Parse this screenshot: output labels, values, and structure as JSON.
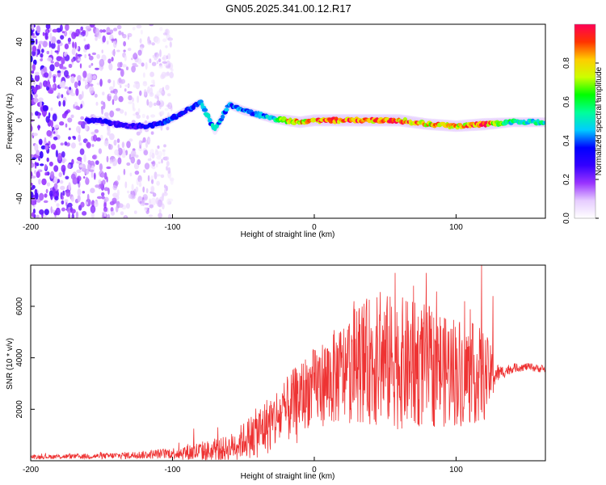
{
  "title": "GN05.2025.341.00.12.R17",
  "chart_data": [
    {
      "type": "heatmap",
      "id": "spectrogram",
      "xlabel": "Height of straight line (km)",
      "ylabel": "Frequency (Hz)",
      "xlim": [
        -200,
        163
      ],
      "ylim": [
        -50,
        49
      ],
      "xticks": [
        -200,
        -100,
        0,
        100
      ],
      "xtick_labels": [
        "-200",
        "-100",
        "0",
        "100"
      ],
      "yticks": [
        -40,
        -20,
        0,
        20,
        40
      ],
      "ytick_labels": [
        "-40",
        "-20",
        "0",
        "20",
        "40"
      ],
      "colorbar": {
        "label": "Normalized spectral amplitude",
        "range": [
          0,
          1
        ],
        "ticks": [
          0.0,
          0.2,
          0.4,
          0.6,
          0.8
        ],
        "tick_labels": [
          "0.0",
          "0.2",
          "0.4",
          "0.6",
          "0.8"
        ],
        "colors": [
          "#ffffff",
          "#e6ccff",
          "#9933ff",
          "#3300ff",
          "#0000ff",
          "#00ccff",
          "#00ff99",
          "#00ff00",
          "#ccff00",
          "#ffcc00",
          "#ff3300",
          "#ff0055"
        ]
      },
      "ridge": {
        "x": [
          -160,
          -150,
          -140,
          -130,
          -120,
          -110,
          -100,
          -90,
          -80,
          -70,
          -60,
          -50,
          -40,
          -30,
          -20,
          -10,
          0,
          20,
          40,
          60,
          80,
          100,
          120,
          140,
          163
        ],
        "freq": [
          0,
          0,
          -2,
          -3,
          -3,
          -2,
          1,
          5,
          9,
          -5,
          8,
          5,
          3,
          1,
          0,
          -1,
          0,
          0,
          0,
          0,
          -2,
          -3,
          -2,
          -1,
          -1
        ],
        "amplitude": [
          0.3,
          0.35,
          0.3,
          0.3,
          0.35,
          0.35,
          0.4,
          0.4,
          0.45,
          0.5,
          0.45,
          0.45,
          0.45,
          0.5,
          0.8,
          0.85,
          0.9,
          0.95,
          0.95,
          0.95,
          0.85,
          0.85,
          0.95,
          0.55,
          0.55
        ]
      },
      "noise_region": {
        "x_range": [
          -200,
          -110
        ],
        "freq_range": [
          -50,
          49
        ],
        "amplitude": 0.15
      }
    },
    {
      "type": "line",
      "id": "snr",
      "xlabel": "Height of straight line (km)",
      "ylabel": "SNR (10 * v/v)",
      "xlim": [
        -200,
        163
      ],
      "ylim": [
        0,
        7600
      ],
      "xticks": [
        -200,
        -100,
        0,
        100
      ],
      "xtick_labels": [
        "-200",
        "-100",
        "0",
        "100"
      ],
      "yticks": [
        2000,
        4000,
        6000
      ],
      "ytick_labels": [
        "2000",
        "4000",
        "6000"
      ],
      "color": "#ee3333",
      "envelope": {
        "x": [
          -200,
          -150,
          -120,
          -100,
          -90,
          -80,
          -70,
          -60,
          -50,
          -40,
          -30,
          -20,
          -10,
          0,
          10,
          20,
          30,
          40,
          50,
          60,
          70,
          80,
          90,
          100,
          110,
          120,
          130,
          140,
          150,
          163
        ],
        "base": [
          150,
          180,
          230,
          300,
          320,
          360,
          380,
          500,
          800,
          1100,
          1500,
          1900,
          2500,
          2900,
          3100,
          3400,
          3800,
          3900,
          3900,
          3800,
          3700,
          3700,
          3600,
          3500,
          3400,
          3300,
          3400,
          3600,
          3650,
          3550
        ],
        "amplitude": [
          80,
          110,
          160,
          220,
          350,
          400,
          450,
          500,
          700,
          1000,
          1200,
          1300,
          1400,
          1500,
          1800,
          2000,
          2300,
          2500,
          2600,
          2600,
          2500,
          2400,
          2300,
          2200,
          2000,
          1800,
          300,
          180,
          150,
          150
        ]
      },
      "peaks": [
        {
          "x": -85,
          "y": 1250
        },
        {
          "x": -68,
          "y": 1300
        },
        {
          "x": 28,
          "y": 6200
        },
        {
          "x": 57,
          "y": 7300
        },
        {
          "x": 70,
          "y": 6800
        },
        {
          "x": 79,
          "y": 7300
        },
        {
          "x": 92,
          "y": 5500
        },
        {
          "x": 106,
          "y": 6200
        },
        {
          "x": 118,
          "y": 7600
        },
        {
          "x": 126,
          "y": 6400
        }
      ]
    }
  ]
}
